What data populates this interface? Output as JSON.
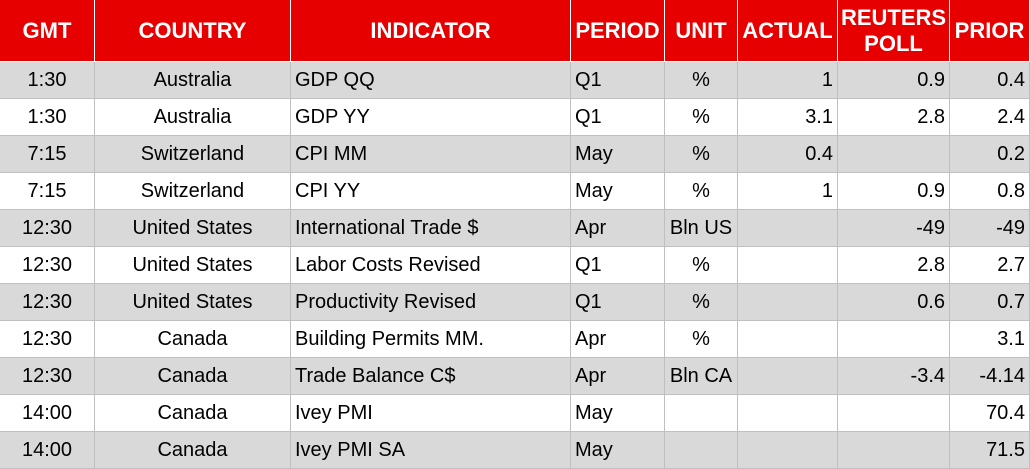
{
  "table": {
    "header": [
      "GMT",
      "COUNTRY",
      "INDICATOR",
      "PERIOD",
      "UNIT",
      "ACTUAL",
      "REUTERS POLL",
      "PRIOR"
    ],
    "rows": [
      [
        "1:30",
        "Australia",
        "GDP QQ",
        "Q1",
        "%",
        1,
        0.9,
        0.4
      ],
      [
        "1:30",
        "Australia",
        "GDP YY",
        "Q1",
        "%",
        3.1,
        2.8,
        2.4
      ],
      [
        "7:15",
        "Switzerland",
        "CPI MM",
        "May",
        "%",
        0.4,
        null,
        0.2
      ],
      [
        "7:15",
        "Switzerland",
        "CPI YY",
        "May",
        "%",
        1,
        0.9,
        0.8
      ],
      [
        "12:30",
        "United States",
        "International Trade $",
        "Apr",
        "Bln US",
        null,
        -49,
        -49
      ],
      [
        "12:30",
        "United States",
        "Labor Costs Revised",
        "Q1",
        "%",
        null,
        2.8,
        2.7
      ],
      [
        "12:30",
        "United States",
        "Productivity Revised",
        "Q1",
        "%",
        null,
        0.6,
        0.7
      ],
      [
        "12:30",
        "Canada",
        "Building Permits MM.",
        "Apr",
        "%",
        null,
        null,
        3.1
      ],
      [
        "12:30",
        "Canada",
        "Trade Balance C$",
        "Apr",
        "Bln CA",
        null,
        -3.4,
        -4.14
      ],
      [
        "14:00",
        "Canada",
        "Ivey PMI",
        "May",
        null,
        null,
        null,
        70.4
      ],
      [
        "14:00",
        "Canada",
        "Ivey PMI SA",
        "May",
        null,
        null,
        null,
        71.5
      ]
    ]
  }
}
